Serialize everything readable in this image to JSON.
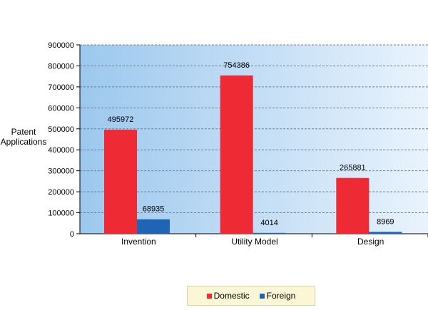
{
  "chart_data": {
    "type": "bar",
    "categories": [
      "Invention",
      "Utility Model",
      "Design"
    ],
    "series": [
      {
        "name": "Domestic",
        "values": [
          495972,
          754386,
          265881
        ],
        "color": "#ee2a35"
      },
      {
        "name": "Foreign",
        "values": [
          68935,
          4014,
          8969
        ],
        "color": "#1f64b5"
      }
    ],
    "title": "",
    "xlabel": "",
    "ylabel": "Patent Applications",
    "ylim": [
      0,
      900000
    ],
    "yticks": [
      "0",
      "100000",
      "200000",
      "300000",
      "400000",
      "500000",
      "600000",
      "700000",
      "800000",
      "900000"
    ],
    "grid": true,
    "legend_position": "bottom-center",
    "plot_background": [
      "#9cc8ee",
      "#e9f3fd"
    ]
  }
}
